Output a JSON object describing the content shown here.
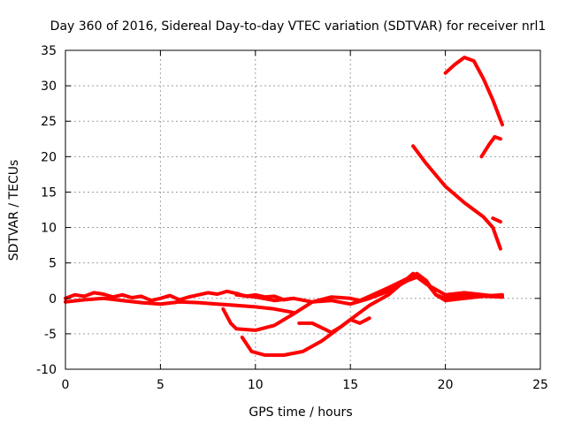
{
  "chart_data": {
    "type": "line",
    "title": "Day 360 of 2016, Sidereal Day-to-day VTEC variation (SDTVAR) for receiver nrl1",
    "xlabel": "GPS time / hours",
    "ylabel": "SDTVAR / TECUs",
    "xlim": [
      0,
      25
    ],
    "ylim": [
      -10,
      35
    ],
    "xticks": [
      0,
      5,
      10,
      15,
      20,
      25
    ],
    "yticks": [
      -10,
      -5,
      0,
      5,
      10,
      15,
      20,
      25,
      30,
      35
    ],
    "grid": true,
    "legend": "none",
    "series_color": "#ff0000",
    "series": [
      {
        "x": [
          0,
          0.5,
          1,
          1.5,
          2,
          2.5,
          3,
          3.5,
          4,
          4.5,
          5,
          5.5,
          6,
          6.5,
          7,
          7.5,
          8,
          8.5,
          9,
          9.5,
          10,
          10.5,
          11,
          11.5,
          12
        ],
        "y": [
          0,
          0.5,
          0.3,
          0.8,
          0.6,
          0.2,
          0.5,
          0.1,
          0.3,
          -0.3,
          0,
          0.4,
          -0.2,
          0.2,
          0.5,
          0.8,
          0.6,
          1,
          0.7,
          0.3,
          0.5,
          0.2,
          0.3,
          -0.2,
          0
        ]
      },
      {
        "x": [
          0,
          1,
          2,
          3,
          4,
          5,
          6,
          7,
          8,
          9,
          10,
          11,
          12
        ],
        "y": [
          -0.5,
          -0.2,
          0,
          -0.3,
          -0.6,
          -0.8,
          -0.5,
          -0.6,
          -0.8,
          -1,
          -1.2,
          -1.5,
          -2
        ]
      },
      {
        "x": [
          8.3,
          8.7,
          9,
          10,
          11,
          12,
          13,
          14,
          15,
          15.5,
          16,
          17,
          18,
          18.5,
          19,
          19.5,
          20,
          21,
          22,
          23
        ],
        "y": [
          -1.5,
          -3.5,
          -4.3,
          -4.5,
          -3.8,
          -2.2,
          -0.5,
          0.2,
          0,
          -0.3,
          0.3,
          1.5,
          2.8,
          3.5,
          2.5,
          0.5,
          0,
          0.5,
          0.3,
          0.2
        ]
      },
      {
        "x": [
          9.3,
          9.8,
          10.5,
          11.5,
          12.5,
          13.5,
          14.5,
          15.5,
          16,
          17,
          18.3,
          19,
          19.5,
          20,
          21,
          22,
          23
        ],
        "y": [
          -5.5,
          -7.5,
          -8,
          -8,
          -7.5,
          -6,
          -4,
          -2,
          -1,
          0.5,
          3.5,
          2.2,
          0.5,
          -0.3,
          0,
          0.3,
          0.5
        ]
      },
      {
        "x": [
          9,
          10,
          11,
          12,
          13,
          14,
          15,
          16,
          17,
          18,
          18.5,
          19,
          20,
          21,
          22,
          23
        ],
        "y": [
          0.5,
          0.2,
          -0.3,
          0,
          -0.5,
          -0.3,
          -0.8,
          0,
          1,
          2.5,
          3,
          2,
          0.5,
          0.8,
          0.5,
          0.2
        ]
      },
      {
        "x": [
          12.3,
          13,
          14,
          14.5,
          15,
          15.5,
          16
        ],
        "y": [
          -3.5,
          -3.5,
          -4.8,
          -4,
          -3,
          -3.5,
          -2.8
        ]
      },
      {
        "x": [
          18.3,
          19,
          20,
          21,
          22,
          22.5,
          22.9
        ],
        "y": [
          21.5,
          19,
          15.8,
          13.5,
          11.5,
          10,
          7
        ]
      },
      {
        "x": [
          20,
          20.5,
          21,
          21.5,
          22,
          22.5,
          23
        ],
        "y": [
          31.8,
          33,
          34,
          33.5,
          31,
          28,
          24.5
        ]
      },
      {
        "x": [
          21.9,
          22.3,
          22.6,
          22.9
        ],
        "y": [
          20,
          21.7,
          22.8,
          22.5
        ]
      },
      {
        "x": [
          22.5,
          22.9
        ],
        "y": [
          11.3,
          10.8
        ]
      }
    ]
  }
}
